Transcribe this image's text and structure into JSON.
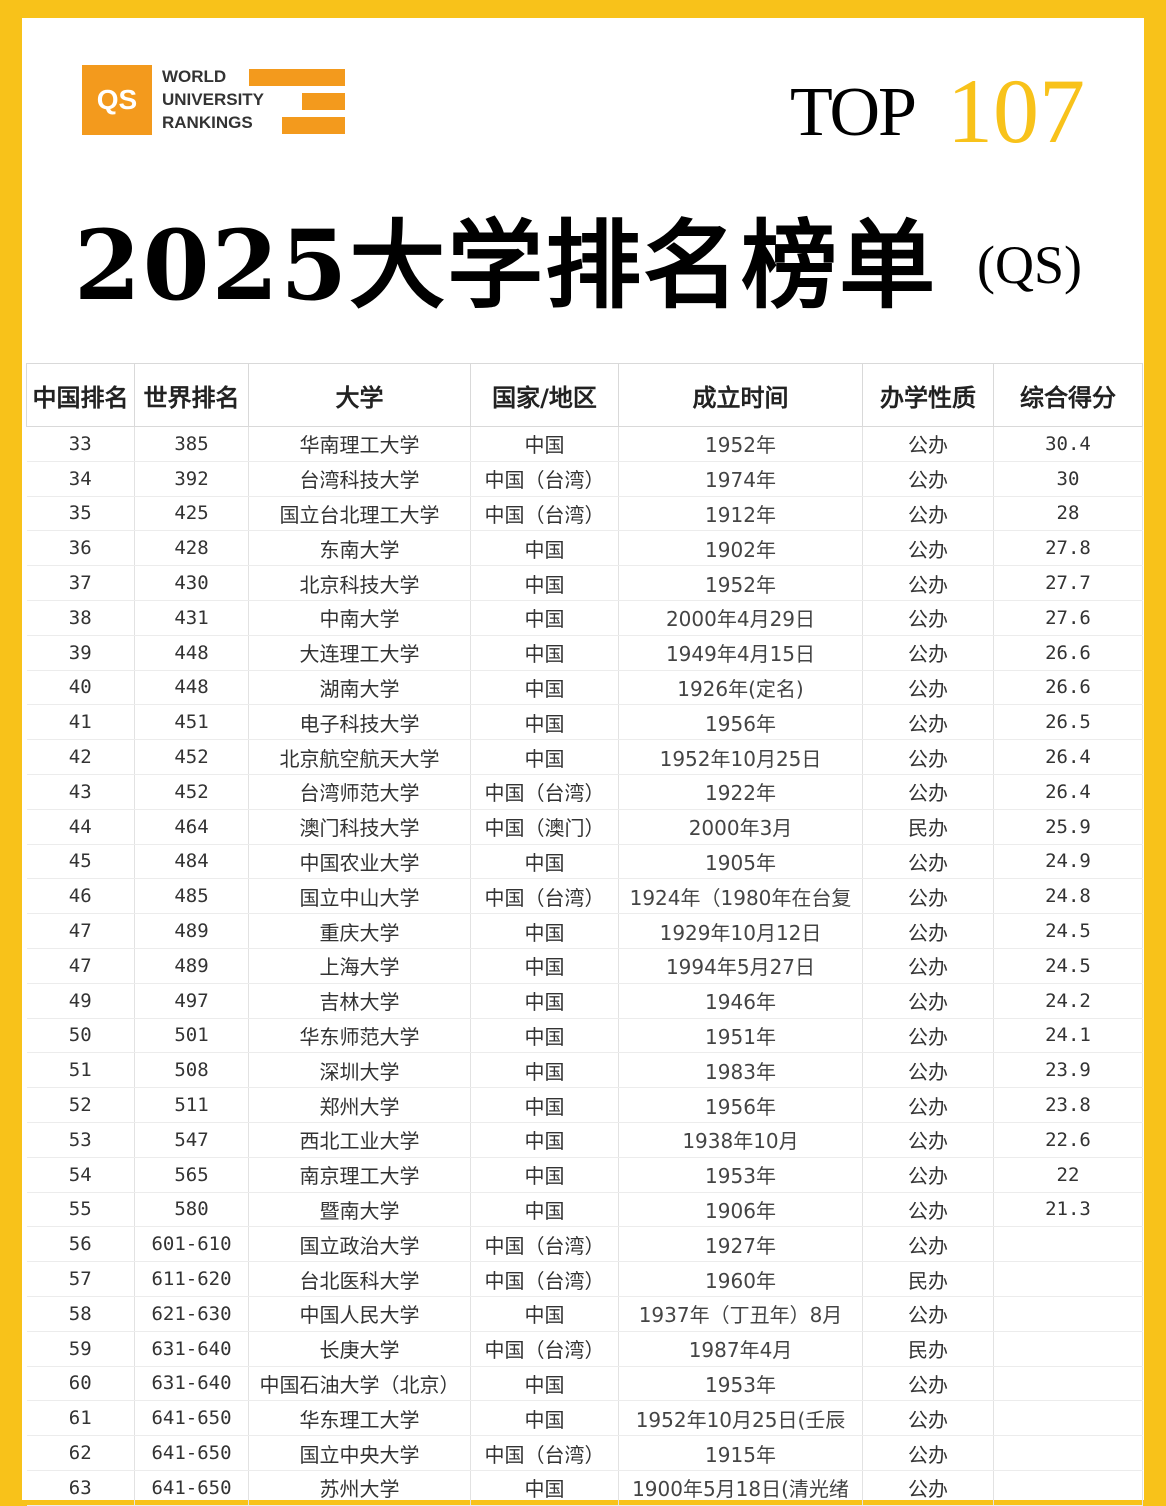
{
  "logo": {
    "qs": "QS",
    "line1": "WORLD",
    "line2": "UNIVERSITY",
    "line3": "RANKINGS",
    "accent_color": "#f39a1d"
  },
  "top": {
    "label": "TOP",
    "number": "107"
  },
  "title": {
    "main": "2025大学排名榜单",
    "suffix": "(QS)"
  },
  "table": {
    "headers": [
      "中国排名",
      "世界排名",
      "大学",
      "国家/地区",
      "成立时间",
      "办学性质",
      "综合得分"
    ],
    "rows": [
      [
        "33",
        "385",
        "华南理工大学",
        "中国",
        "1952年",
        "公办",
        "30.4"
      ],
      [
        "34",
        "392",
        "台湾科技大学",
        "中国（台湾）",
        "1974年",
        "公办",
        "30"
      ],
      [
        "35",
        "425",
        "国立台北理工大学",
        "中国（台湾）",
        "1912年",
        "公办",
        "28"
      ],
      [
        "36",
        "428",
        "东南大学",
        "中国",
        "1902年",
        "公办",
        "27.8"
      ],
      [
        "37",
        "430",
        "北京科技大学",
        "中国",
        "1952年",
        "公办",
        "27.7"
      ],
      [
        "38",
        "431",
        "中南大学",
        "中国",
        "2000年4月29日",
        "公办",
        "27.6"
      ],
      [
        "39",
        "448",
        "大连理工大学",
        "中国",
        "1949年4月15日",
        "公办",
        "26.6"
      ],
      [
        "40",
        "448",
        "湖南大学",
        "中国",
        "1926年(定名)",
        "公办",
        "26.6"
      ],
      [
        "41",
        "451",
        "电子科技大学",
        "中国",
        "1956年",
        "公办",
        "26.5"
      ],
      [
        "42",
        "452",
        "北京航空航天大学",
        "中国",
        "1952年10月25日",
        "公办",
        "26.4"
      ],
      [
        "43",
        "452",
        "台湾师范大学",
        "中国（台湾）",
        "1922年",
        "公办",
        "26.4"
      ],
      [
        "44",
        "464",
        "澳门科技大学",
        "中国（澳门）",
        "2000年3月",
        "民办",
        "25.9"
      ],
      [
        "45",
        "484",
        "中国农业大学",
        "中国",
        "1905年",
        "公办",
        "24.9"
      ],
      [
        "46",
        "485",
        "国立中山大学",
        "中国（台湾）",
        "1924年（1980年在台复",
        "公办",
        "24.8"
      ],
      [
        "47",
        "489",
        "重庆大学",
        "中国",
        "1929年10月12日",
        "公办",
        "24.5"
      ],
      [
        "47",
        "489",
        "上海大学",
        "中国",
        "1994年5月27日",
        "公办",
        "24.5"
      ],
      [
        "49",
        "497",
        "吉林大学",
        "中国",
        "1946年",
        "公办",
        "24.2"
      ],
      [
        "50",
        "501",
        "华东师范大学",
        "中国",
        "1951年",
        "公办",
        "24.1"
      ],
      [
        "51",
        "508",
        "深圳大学",
        "中国",
        "1983年",
        "公办",
        "23.9"
      ],
      [
        "52",
        "511",
        "郑州大学",
        "中国",
        "1956年",
        "公办",
        "23.8"
      ],
      [
        "53",
        "547",
        "西北工业大学",
        "中国",
        "1938年10月",
        "公办",
        "22.6"
      ],
      [
        "54",
        "565",
        "南京理工大学",
        "中国",
        "1953年",
        "公办",
        "22"
      ],
      [
        "55",
        "580",
        "暨南大学",
        "中国",
        "1906年",
        "公办",
        "21.3"
      ],
      [
        "56",
        "601-610",
        "国立政治大学",
        "中国（台湾）",
        "1927年",
        "公办",
        ""
      ],
      [
        "57",
        "611-620",
        "台北医科大学",
        "中国（台湾）",
        "1960年",
        "民办",
        ""
      ],
      [
        "58",
        "621-630",
        "中国人民大学",
        "中国",
        "1937年（丁丑年）8月",
        "公办",
        ""
      ],
      [
        "59",
        "631-640",
        "长庚大学",
        "中国（台湾）",
        "1987年4月",
        "民办",
        ""
      ],
      [
        "60",
        "631-640",
        "中国石油大学（北京）",
        "中国",
        "1953年",
        "公办",
        ""
      ],
      [
        "61",
        "641-650",
        "华东理工大学",
        "中国",
        "1952年10月25日(壬辰",
        "公办",
        ""
      ],
      [
        "62",
        "641-650",
        "国立中央大学",
        "中国（台湾）",
        "1915年",
        "公办",
        ""
      ],
      [
        "63",
        "641-650",
        "苏州大学",
        "中国",
        "1900年5月18日(清光绪",
        "公办",
        ""
      ]
    ]
  }
}
